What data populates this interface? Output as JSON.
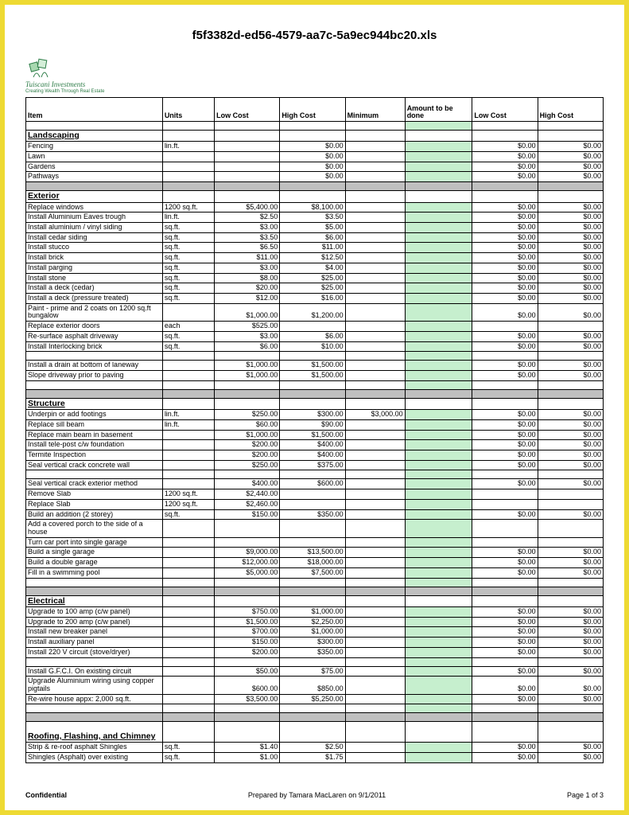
{
  "doc_title": "f5f3382d-ed56-4579-aa7c-5a9ec944bc20.xls",
  "company_name": "Tuiscani Investments",
  "company_tagline": "Creating Wealth Through Real Estate",
  "headers": {
    "item": "Item",
    "units": "Units",
    "low_cost": "Low Cost",
    "high_cost": "High Cost",
    "minimum": "Minimum",
    "amount_to_be_done": "Amount to be done",
    "low_cost2": "Low Cost",
    "high_cost2": "High Cost"
  },
  "colors": {
    "frame_border": "#eeda33",
    "amt_fill": "#c6efce",
    "grey_fill": "#bfbfbf",
    "logo_green": "#2e7d48"
  },
  "rows": [
    {
      "type": "blank"
    },
    {
      "type": "section",
      "label": "Landscaping"
    },
    {
      "type": "data",
      "item": "Fencing",
      "units": "lin.ft.",
      "lc1": "",
      "hc1": "$0.00",
      "min": "",
      "lc2": "$0.00",
      "hc2": "$0.00"
    },
    {
      "type": "data",
      "item": "Lawn",
      "units": "",
      "lc1": "",
      "hc1": "$0.00",
      "min": "",
      "lc2": "$0.00",
      "hc2": "$0.00"
    },
    {
      "type": "data",
      "item": "Gardens",
      "units": "",
      "lc1": "",
      "hc1": "$0.00",
      "min": "",
      "lc2": "$0.00",
      "hc2": "$0.00"
    },
    {
      "type": "data",
      "item": "Pathways",
      "units": "",
      "lc1": "",
      "hc1": "$0.00",
      "min": "",
      "lc2": "$0.00",
      "hc2": "$0.00"
    },
    {
      "type": "grey"
    },
    {
      "type": "section",
      "label": "Exterior"
    },
    {
      "type": "data",
      "item": "Replace windows",
      "units": "1200 sq.ft.",
      "lc1": "$5,400.00",
      "hc1": "$8,100.00",
      "min": "",
      "lc2": "$0.00",
      "hc2": "$0.00"
    },
    {
      "type": "data",
      "item": "Install Aluminium Eaves trough",
      "units": "lin.ft.",
      "lc1": "$2.50",
      "hc1": "$3.50",
      "min": "",
      "lc2": "$0.00",
      "hc2": "$0.00"
    },
    {
      "type": "data",
      "item": "Install aluminium / vinyl siding",
      "units": "sq.ft.",
      "lc1": "$3.00",
      "hc1": "$5.00",
      "min": "",
      "lc2": "$0.00",
      "hc2": "$0.00"
    },
    {
      "type": "data",
      "item": "Install cedar siding",
      "units": "sq.ft.",
      "lc1": "$3.50",
      "hc1": "$6.00",
      "min": "",
      "lc2": "$0.00",
      "hc2": "$0.00"
    },
    {
      "type": "data",
      "item": "Install stucco",
      "units": "sq.ft.",
      "lc1": "$6.50",
      "hc1": "$11.00",
      "min": "",
      "lc2": "$0.00",
      "hc2": "$0.00"
    },
    {
      "type": "data",
      "item": "Install brick",
      "units": "sq.ft.",
      "lc1": "$11.00",
      "hc1": "$12.50",
      "min": "",
      "lc2": "$0.00",
      "hc2": "$0.00"
    },
    {
      "type": "data",
      "item": "Install parging",
      "units": "sq.ft.",
      "lc1": "$3.00",
      "hc1": "$4.00",
      "min": "",
      "lc2": "$0.00",
      "hc2": "$0.00"
    },
    {
      "type": "data",
      "item": "Install stone",
      "units": "sq.ft.",
      "lc1": "$8.00",
      "hc1": "$25.00",
      "min": "",
      "lc2": "$0.00",
      "hc2": "$0.00"
    },
    {
      "type": "data",
      "item": "Install a deck (cedar)",
      "units": "sq.ft.",
      "lc1": "$20.00",
      "hc1": "$25.00",
      "min": "",
      "lc2": "$0.00",
      "hc2": "$0.00"
    },
    {
      "type": "data",
      "item": "Install a deck (pressure treated)",
      "units": "sq.ft.",
      "lc1": "$12.00",
      "hc1": "$16.00",
      "min": "",
      "lc2": "$0.00",
      "hc2": "$0.00"
    },
    {
      "type": "data",
      "item": "Paint - prime and 2 coats on 1200 sq.ft bungalow",
      "units": "",
      "lc1": "$1,000.00",
      "hc1": "$1,200.00",
      "min": "",
      "lc2": "$0.00",
      "hc2": "$0.00",
      "tall": true
    },
    {
      "type": "data",
      "item": "Replace exterior doors",
      "units": "each",
      "lc1": "$525.00",
      "hc1": "",
      "min": "",
      "lc2": "",
      "hc2": ""
    },
    {
      "type": "data",
      "item": "Re-surface asphalt driveway",
      "units": "sq.ft.",
      "lc1": "$3.00",
      "hc1": "$6.00",
      "min": "",
      "lc2": "$0.00",
      "hc2": "$0.00"
    },
    {
      "type": "data",
      "item": "Install Interlocking brick",
      "units": "sq.ft.",
      "lc1": "$6.00",
      "hc1": "$10.00",
      "min": "",
      "lc2": "$0.00",
      "hc2": "$0.00"
    },
    {
      "type": "blank"
    },
    {
      "type": "data",
      "item": "Install a drain at bottom of laneway",
      "units": "",
      "lc1": "$1,000.00",
      "hc1": "$1,500.00",
      "min": "",
      "lc2": "$0.00",
      "hc2": "$0.00"
    },
    {
      "type": "data",
      "item": "Slope driveway prior to paving",
      "units": "",
      "lc1": "$1,000.00",
      "hc1": "$1,500.00",
      "min": "",
      "lc2": "$0.00",
      "hc2": "$0.00"
    },
    {
      "type": "blank"
    },
    {
      "type": "grey"
    },
    {
      "type": "section",
      "label": "Structure"
    },
    {
      "type": "data",
      "item": "Underpin or add footings",
      "units": "lin.ft.",
      "lc1": "$250.00",
      "hc1": "$300.00",
      "min": "$3,000.00",
      "lc2": "$0.00",
      "hc2": "$0.00"
    },
    {
      "type": "data",
      "item": "Replace sill beam",
      "units": "lin.ft.",
      "lc1": "$60.00",
      "hc1": "$90.00",
      "min": "",
      "lc2": "$0.00",
      "hc2": "$0.00"
    },
    {
      "type": "data",
      "item": "Replace main beam in basement",
      "units": "",
      "lc1": "$1,000.00",
      "hc1": "$1,500.00",
      "min": "",
      "lc2": "$0.00",
      "hc2": "$0.00"
    },
    {
      "type": "data",
      "item": "Install tele-post c/w foundation",
      "units": "",
      "lc1": "$200.00",
      "hc1": "$400.00",
      "min": "",
      "lc2": "$0.00",
      "hc2": "$0.00"
    },
    {
      "type": "data",
      "item": "Termite Inspection",
      "units": "",
      "lc1": "$200.00",
      "hc1": "$400.00",
      "min": "",
      "lc2": "$0.00",
      "hc2": "$0.00"
    },
    {
      "type": "data",
      "item": "Seal vertical crack concrete wall",
      "units": "",
      "lc1": "$250.00",
      "hc1": "$375.00",
      "min": "",
      "lc2": "$0.00",
      "hc2": "$0.00"
    },
    {
      "type": "blank"
    },
    {
      "type": "data",
      "item": "Seal vertical crack exterior method",
      "units": "",
      "lc1": "$400.00",
      "hc1": "$600.00",
      "min": "",
      "lc2": "$0.00",
      "hc2": "$0.00"
    },
    {
      "type": "data",
      "item": "Remove Slab",
      "units": "1200 sq.ft.",
      "lc1": "$2,440.00",
      "hc1": "",
      "min": "",
      "lc2": "",
      "hc2": ""
    },
    {
      "type": "data",
      "item": "Replace Slab",
      "units": "1200 sq.ft.",
      "lc1": "$2,460.00",
      "hc1": "",
      "min": "",
      "lc2": "",
      "hc2": ""
    },
    {
      "type": "data",
      "item": "Build an addition (2 storey)",
      "units": "sq.ft.",
      "lc1": "$150.00",
      "hc1": "$350.00",
      "min": "",
      "lc2": "$0.00",
      "hc2": "$0.00"
    },
    {
      "type": "data",
      "item": "Add a covered porch to the side of a house",
      "units": "",
      "lc1": "",
      "hc1": "",
      "min": "",
      "lc2": "",
      "hc2": "",
      "tall": true
    },
    {
      "type": "data",
      "item": "Turn car port into single garage",
      "units": "",
      "lc1": "",
      "hc1": "",
      "min": "",
      "lc2": "",
      "hc2": ""
    },
    {
      "type": "data",
      "item": "Build a single garage",
      "units": "",
      "lc1": "$9,000.00",
      "hc1": "$13,500.00",
      "min": "",
      "lc2": "$0.00",
      "hc2": "$0.00"
    },
    {
      "type": "data",
      "item": "Build a double garage",
      "units": "",
      "lc1": "$12,000.00",
      "hc1": "$18,000.00",
      "min": "",
      "lc2": "$0.00",
      "hc2": "$0.00"
    },
    {
      "type": "data",
      "item": "Fill in a swimming pool",
      "units": "",
      "lc1": "$5,000.00",
      "hc1": "$7,500.00",
      "min": "",
      "lc2": "$0.00",
      "hc2": "$0.00"
    },
    {
      "type": "blank"
    },
    {
      "type": "grey"
    },
    {
      "type": "section",
      "label": "Electrical"
    },
    {
      "type": "data",
      "item": "Upgrade to 100 amp (c/w panel)",
      "units": "",
      "lc1": "$750.00",
      "hc1": "$1,000.00",
      "min": "",
      "lc2": "$0.00",
      "hc2": "$0.00"
    },
    {
      "type": "data",
      "item": "Upgrade to 200 amp (c/w panel)",
      "units": "",
      "lc1": "$1,500.00",
      "hc1": "$2,250.00",
      "min": "",
      "lc2": "$0.00",
      "hc2": "$0.00"
    },
    {
      "type": "data",
      "item": "Install new breaker panel",
      "units": "",
      "lc1": "$700.00",
      "hc1": "$1,000.00",
      "min": "",
      "lc2": "$0.00",
      "hc2": "$0.00"
    },
    {
      "type": "data",
      "item": "Install auxiliary panel",
      "units": "",
      "lc1": "$150.00",
      "hc1": "$300.00",
      "min": "",
      "lc2": "$0.00",
      "hc2": "$0.00"
    },
    {
      "type": "data",
      "item": "Install 220 V circuit (stove/dryer)",
      "units": "",
      "lc1": "$200.00",
      "hc1": "$350.00",
      "min": "",
      "lc2": "$0.00",
      "hc2": "$0.00"
    },
    {
      "type": "blank"
    },
    {
      "type": "data",
      "item": "Install G.F.C.I. On existing circuit",
      "units": "",
      "lc1": "$50.00",
      "hc1": "$75.00",
      "min": "",
      "lc2": "$0.00",
      "hc2": "$0.00"
    },
    {
      "type": "data",
      "item": "Upgrade Aluminium wiring using copper pigtails",
      "units": "",
      "lc1": "$600.00",
      "hc1": "$850.00",
      "min": "",
      "lc2": "$0.00",
      "hc2": "$0.00",
      "tall": true
    },
    {
      "type": "data",
      "item": "Re-wire house appx: 2,000 sq.ft.",
      "units": "",
      "lc1": "$3,500.00",
      "hc1": "$5,250.00",
      "min": "",
      "lc2": "$0.00",
      "hc2": "$0.00"
    },
    {
      "type": "blank"
    },
    {
      "type": "grey"
    },
    {
      "type": "section",
      "label": "Roofing, Flashing, and Chimney",
      "tall": true
    },
    {
      "type": "data",
      "item": "Strip & re-roof asphalt Shingles",
      "units": "sq.ft.",
      "lc1": "$1.40",
      "hc1": "$2.50",
      "min": "",
      "lc2": "$0.00",
      "hc2": "$0.00"
    },
    {
      "type": "data",
      "item": "Shingles (Asphalt) over existing",
      "units": "sq.ft.",
      "lc1": "$1.00",
      "hc1": "$1.75",
      "min": "",
      "lc2": "$0.00",
      "hc2": "$0.00"
    }
  ],
  "footer": {
    "confidential": "Confidential",
    "prepared_by": "Prepared by Tamara MacLaren on 9/1/2011",
    "page": "Page 1 of 3"
  }
}
